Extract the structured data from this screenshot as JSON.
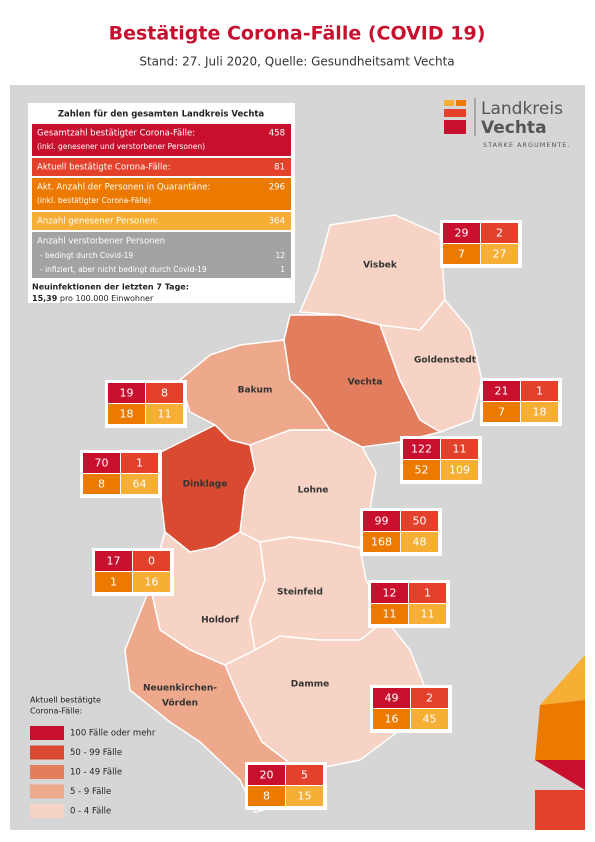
{
  "header": {
    "title": "Bestätigte Corona-Fälle (COVID 19)",
    "subtitle": "Stand: 27. Juli 2020, Quelle: Gesundheitsamt Vechta"
  },
  "logo": {
    "line1": "Landkreis",
    "line2": "Vechta",
    "slogan": "STARKE ARGUMENTE."
  },
  "summary": {
    "title": "Zahlen für den gesamten Landkreis Vechta",
    "rows": [
      {
        "label": "Gesamtzahl bestätigter Corona-Fälle:",
        "note": "(inkl. genesener und verstorbener Personen)",
        "value": 458,
        "color": "#c8102e"
      },
      {
        "label": "Aktuell bestätigte Corona-Fälle:",
        "value": 81,
        "color": "#e3412c"
      },
      {
        "label": "Akt. Anzahl der Personen in Quarantäne:",
        "note": "(inkl. bestätigter Corona-Fälle)",
        "value": 296,
        "color": "#ec7a00"
      },
      {
        "label": "Anzahl genesener Personen:",
        "value": 364,
        "color": "#f6ae35"
      }
    ],
    "deaths": {
      "label": "Anzahl verstorbener Personen",
      "color": "#a3a3a3",
      "items": [
        {
          "label": "- bedingt durch Covid-19",
          "value": 12
        },
        {
          "label": "- infiziert, aber nicht bedingt durch Covid-19",
          "value": 1
        }
      ]
    },
    "incidence": {
      "label": "Neuinfektionen der letzten 7 Tage:",
      "value": "15,39",
      "unit": "pro 100.000 Einwohner"
    }
  },
  "cell_colors": [
    "#c8102e",
    "#e3412c",
    "#ec7a00",
    "#f6ae35"
  ],
  "municipalities": [
    {
      "name": "Visbek",
      "values": [
        29,
        2,
        7,
        27
      ],
      "color": "#f6d3c4"
    },
    {
      "name": "Goldenstedt",
      "values": [
        21,
        1,
        7,
        18
      ],
      "color": "#f6d3c4"
    },
    {
      "name": "Vechta",
      "values": [
        122,
        11,
        52,
        109
      ],
      "color": "#e27e5d"
    },
    {
      "name": "Bakum",
      "values": [
        19,
        8,
        18,
        11
      ],
      "color": "#eea88c"
    },
    {
      "name": "Dinklage",
      "values": [
        70,
        1,
        8,
        64
      ],
      "color": "#f6d3c4"
    },
    {
      "name": "Lohne",
      "values": [
        99,
        50,
        168,
        48
      ],
      "color": "#d94a30"
    },
    {
      "name": "Holdorf",
      "values": [
        17,
        0,
        1,
        16
      ],
      "color": "#f6d3c4"
    },
    {
      "name": "Steinfeld",
      "values": [
        12,
        1,
        11,
        11
      ],
      "color": "#f6d3c4"
    },
    {
      "name": "Damme",
      "values": [
        49,
        2,
        16,
        45
      ],
      "color": "#f6d3c4"
    },
    {
      "name": [
        "Neuenkirchen-",
        "Vörden"
      ],
      "values": [
        20,
        5,
        8,
        15
      ],
      "color": "#eea88c"
    }
  ],
  "legend": {
    "title": [
      "Aktuell bestätigte",
      "Corona-Fälle:"
    ],
    "items": [
      {
        "label": "100 Fälle oder mehr",
        "color": "#c8102e"
      },
      {
        "label": "50 - 99 Fälle",
        "color": "#d94a30"
      },
      {
        "label": "10 - 49 Fälle",
        "color": "#e27e5d"
      },
      {
        "label": "5 - 9 Fälle",
        "color": "#eea88c"
      },
      {
        "label": "0 - 4 Fälle",
        "color": "#f6d3c4"
      }
    ]
  }
}
